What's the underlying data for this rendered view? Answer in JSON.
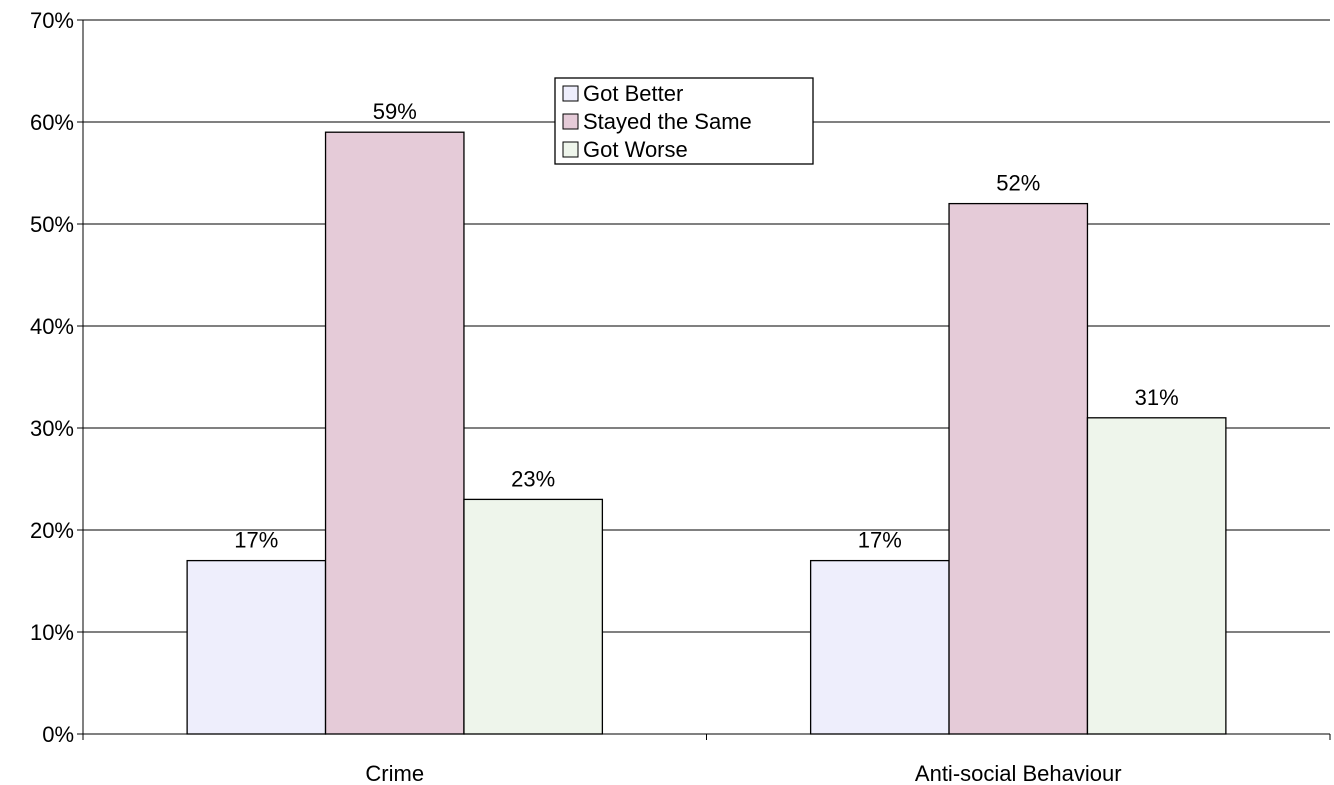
{
  "chart_data": {
    "type": "bar",
    "title": "",
    "xlabel": "",
    "ylabel": "",
    "categories": [
      "Crime",
      "Anti-social Behaviour"
    ],
    "series": [
      {
        "name": "Got Better",
        "values": [
          17,
          17
        ],
        "color": "#eeeefc"
      },
      {
        "name": "Stayed the Same",
        "values": [
          59,
          52
        ],
        "color": "#e5cbd8"
      },
      {
        "name": "Got Worse",
        "values": [
          23,
          31
        ],
        "color": "#eef5eb"
      }
    ],
    "ylim": [
      0,
      70
    ],
    "y_ticks": [
      0,
      10,
      20,
      30,
      40,
      50,
      60,
      70
    ],
    "y_tick_labels": [
      "0%",
      "10%",
      "20%",
      "30%",
      "40%",
      "50%",
      "60%",
      "70%"
    ],
    "data_labels": [
      [
        "17%",
        "17%"
      ],
      [
        "59%",
        "52%"
      ],
      [
        "23%",
        "31%"
      ]
    ],
    "grid": true,
    "legend_position": "top-center"
  }
}
